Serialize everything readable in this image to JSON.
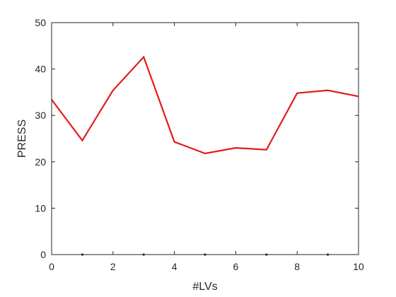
{
  "chart_data": {
    "type": "line",
    "title": "",
    "xlabel": "#LVs",
    "ylabel": "PRESS",
    "xlim": [
      0,
      10
    ],
    "ylim": [
      0,
      50
    ],
    "x_ticks": [
      0,
      2,
      4,
      6,
      8,
      10
    ],
    "y_ticks": [
      0,
      10,
      20,
      30,
      40,
      50
    ],
    "x_minor_markers": [
      1,
      3,
      5,
      7,
      9
    ],
    "grid": false,
    "series": [
      {
        "color": "#e41a1c",
        "x": [
          0,
          1,
          2,
          3,
          4,
          5,
          6,
          7,
          8,
          9,
          10
        ],
        "y": [
          33.4,
          24.6,
          35.4,
          42.6,
          24.3,
          21.8,
          23.0,
          22.6,
          34.8,
          35.4,
          34.1
        ]
      }
    ]
  }
}
